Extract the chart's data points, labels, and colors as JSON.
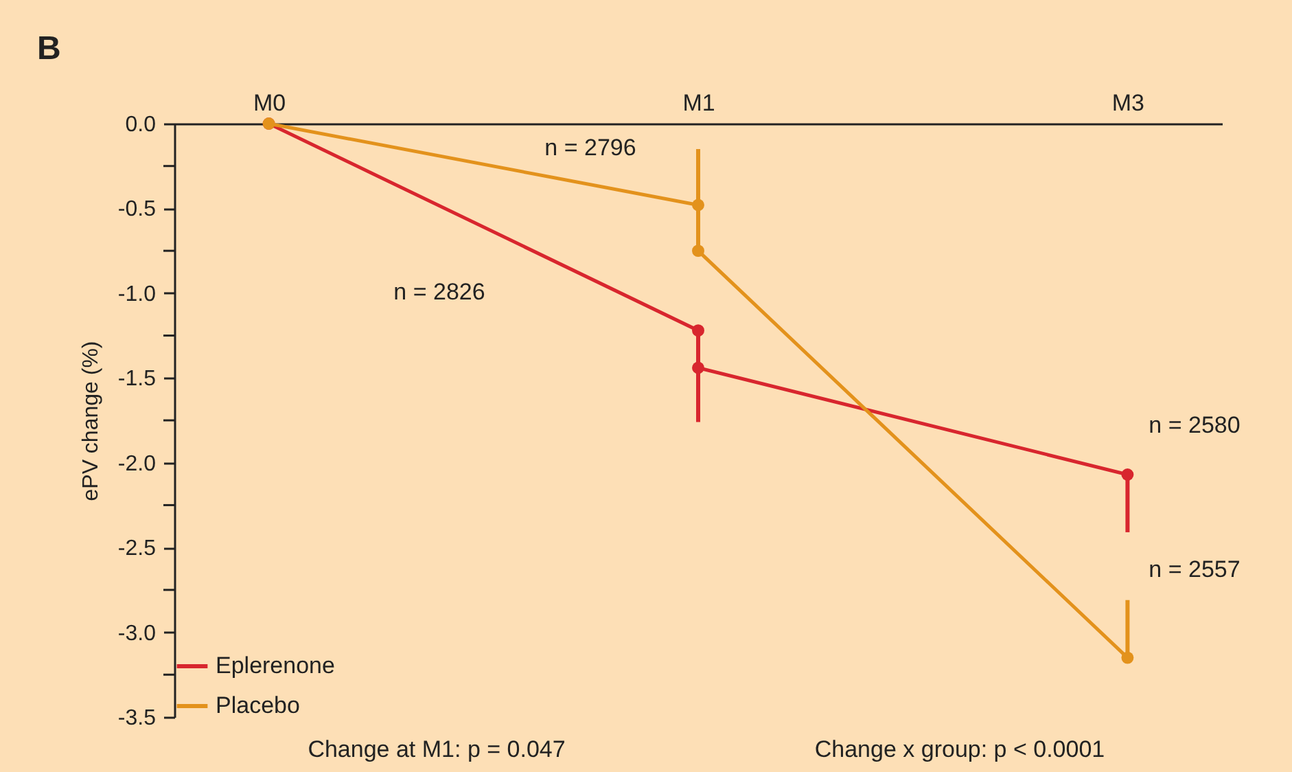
{
  "chart_data": {
    "type": "line",
    "title": "B",
    "ylabel": "ePV change (%)",
    "categories": [
      "M0",
      "M1",
      "M3"
    ],
    "ylim": [
      -3.5,
      0
    ],
    "yticks": [
      {
        "value": 0,
        "label": "0.0"
      },
      {
        "value": -0.25,
        "label": null
      },
      {
        "value": -0.5,
        "label": "-0.5"
      },
      {
        "value": -0.75,
        "label": null
      },
      {
        "value": -1,
        "label": "-1.0"
      },
      {
        "value": -1.25,
        "label": null
      },
      {
        "value": -1.5,
        "label": "-1.5"
      },
      {
        "value": -1.75,
        "label": null
      },
      {
        "value": -2,
        "label": "-2.0"
      },
      {
        "value": -2.25,
        "label": null
      },
      {
        "value": -2.5,
        "label": "-2.5"
      },
      {
        "value": -2.75,
        "label": null
      },
      {
        "value": -3,
        "label": "-3.0"
      },
      {
        "value": -3.25,
        "label": null
      },
      {
        "value": -3.5,
        "label": "-3.5"
      }
    ],
    "grid": false,
    "legend": "bottom left",
    "marker": "circle",
    "line_style": "solid",
    "series": [
      {
        "name": "Eplerenone",
        "color": "#d8262e",
        "x": [
          "M0",
          "M1"
        ],
        "values": [
          0,
          -1.22
        ],
        "errors": [
          null,
          [
            -1.54,
            -1.22
          ]
        ]
      },
      {
        "name": "Placebo",
        "color": "#e3921c",
        "x": [
          "M0",
          "M1"
        ],
        "values": [
          0,
          -0.48
        ],
        "errors": [
          null,
          [
            -0.48,
            -0.15
          ]
        ]
      },
      {
        "color": "#d8262e",
        "x": [
          "M1",
          "M3"
        ],
        "values": [
          -1.44,
          -2.07
        ],
        "errors": [
          [
            -1.76,
            -1.44
          ],
          [
            -2.41,
            -2.07
          ]
        ]
      },
      {
        "color": "#e3921c",
        "x": [
          "M1",
          "M3"
        ],
        "values": [
          -0.75,
          -3.15
        ],
        "errors": [
          [
            -0.75,
            -0.42
          ],
          [
            -3.15,
            -2.81
          ]
        ]
      }
    ],
    "annotations": [
      "n = 2796",
      "n = 2826",
      "n = 2580",
      "n = 2557",
      "Change at M1: p = 0.047",
      "Change x group: p < 0.0001"
    ]
  }
}
